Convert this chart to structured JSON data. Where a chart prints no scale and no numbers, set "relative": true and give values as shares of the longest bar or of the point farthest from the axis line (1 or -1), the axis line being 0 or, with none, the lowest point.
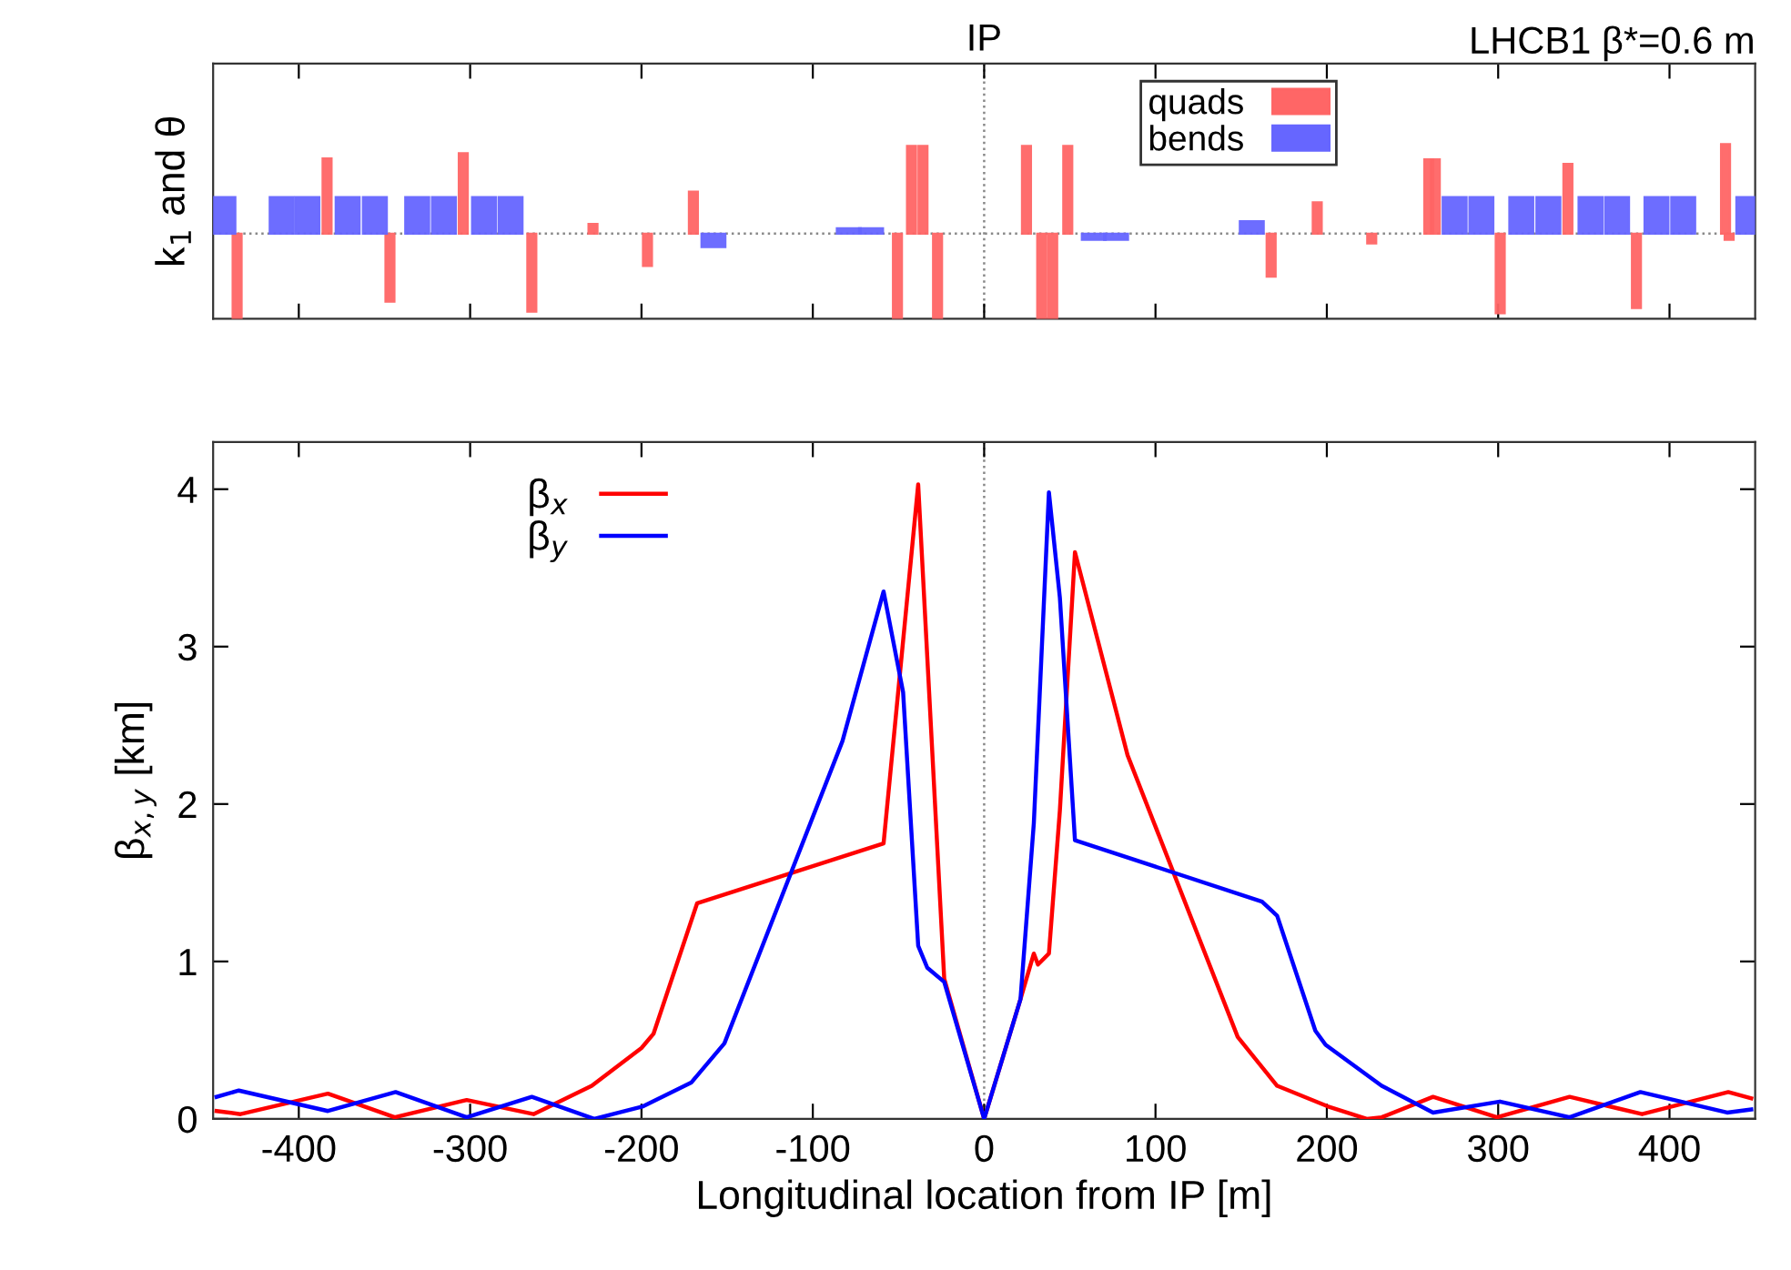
{
  "chart_data": [
    {
      "type": "bar",
      "relative": true,
      "title": "LHCB1 β*=0.6 m",
      "ylabel": "k$_{1}$ and θ",
      "xlim": [
        -450,
        450
      ],
      "xticks": [
        -400,
        -300,
        -200,
        -100,
        0,
        100,
        200,
        300,
        400
      ],
      "tick_labels": false,
      "legend": "top",
      "ref_lines": [
        {
          "axis": "x",
          "value": 0,
          "label": "IP",
          "line_style": "dotted",
          "color": "#888888"
        },
        {
          "axis": "y",
          "value": 0,
          "line_style": "dotted",
          "color": "#888888"
        }
      ],
      "series": [
        {
          "name": "quads",
          "color": "#ff6666",
          "x": [
            -436,
            -383.5,
            -346.8,
            -304,
            -264,
            -228.3,
            -196.5,
            -169.7,
            -50.6,
            -42.4,
            -35.7,
            -27.2,
            24.7,
            33.6,
            40,
            48.8,
            167.5,
            194.4,
            226.2,
            259.5,
            263.3,
            301.2,
            340.7,
            380.7,
            432.7,
            434.8
          ],
          "values": [
            -0.95,
            0.84,
            -0.76,
            0.9,
            -0.87,
            0.11,
            -0.36,
            0.47,
            -0.95,
            0.98,
            0.98,
            -0.95,
            0.98,
            -0.95,
            -0.95,
            0.98,
            -0.48,
            0.35,
            -0.11,
            0.83,
            0.83,
            -0.89,
            0.78,
            -0.83,
            1,
            -0.07
          ]
        },
        {
          "name": "bends",
          "color": "#6666ff",
          "x": [
            -444,
            -410,
            -395,
            -371.5,
            -355.6,
            -330.9,
            -315.3,
            -291.9,
            -276.4,
            -158,
            -79,
            -66,
            64,
            77,
            156.2,
            274.6,
            290.2,
            313.5,
            329.3,
            353.9,
            369.4,
            392.4,
            408,
            446
          ],
          "values": [
            0.41,
            0.41,
            0.41,
            0.41,
            0.41,
            0.41,
            0.41,
            0.41,
            0.41,
            -0.15,
            0.06,
            0.06,
            -0.07,
            -0.07,
            0.14,
            0.41,
            0.41,
            0.41,
            0.41,
            0.41,
            0.41,
            0.41,
            0.41,
            0.41
          ]
        }
      ]
    },
    {
      "type": "line",
      "xlabel": "Longitudinal location from IP [m]",
      "ylabel": "β$_{x,y}$ [km]",
      "xlim": [
        -450,
        450
      ],
      "ylim": [
        0,
        4.3
      ],
      "xticks": [
        -400,
        -300,
        -200,
        -100,
        0,
        100,
        200,
        300,
        400
      ],
      "yticks": [
        0,
        1,
        2,
        3,
        4
      ],
      "legend": "top left",
      "line_style": "solid",
      "ref_lines": [
        {
          "axis": "x",
          "value": 0,
          "line_style": "dotted",
          "color": "#888888"
        }
      ],
      "series": [
        {
          "name": "β$_{x}$",
          "color": "#ff0000",
          "x": [
            -448,
            -434,
            -383,
            -344,
            -302,
            -263,
            -229,
            -200,
            -193,
            -167.5,
            -58.7,
            -38.5,
            -23.3,
            0,
            21.2,
            29,
            31.4,
            37.8,
            44.2,
            53,
            83.7,
            148,
            171,
            200.4,
            223.3,
            232,
            262,
            299.3,
            341.7,
            384,
            434.3,
            447.7
          ],
          "values": [
            0.05,
            0.03,
            0.16,
            0.01,
            0.12,
            0.03,
            0.21,
            0.45,
            0.54,
            1.37,
            1.75,
            4.03,
            0.89,
            0,
            0.76,
            1.05,
            0.98,
            1.05,
            1.96,
            3.6,
            2.31,
            0.52,
            0.21,
            0.08,
            0,
            0.01,
            0.14,
            0.01,
            0.14,
            0.03,
            0.17,
            0.13
          ]
        },
        {
          "name": "β$_{y}$",
          "color": "#0000ff",
          "x": [
            -448,
            -435,
            -383,
            -343.5,
            -302,
            -264,
            -227.6,
            -199,
            -171,
            -151.6,
            -82.7,
            -58.7,
            -47.3,
            -38.5,
            -33.2,
            -23.3,
            0,
            21.2,
            29,
            37.8,
            44.2,
            53,
            162.2,
            171,
            193.3,
            199.3,
            232,
            262,
            301,
            341.7,
            383,
            433.6,
            447.7
          ],
          "values": [
            0.14,
            0.18,
            0.05,
            0.17,
            0.01,
            0.14,
            0,
            0.08,
            0.23,
            0.48,
            2.4,
            3.35,
            2.71,
            1.1,
            0.96,
            0.87,
            0,
            0.76,
            1.88,
            3.98,
            3.31,
            1.77,
            1.38,
            1.29,
            0.56,
            0.47,
            0.21,
            0.04,
            0.11,
            0.01,
            0.17,
            0.04,
            0.06
          ]
        }
      ]
    }
  ]
}
